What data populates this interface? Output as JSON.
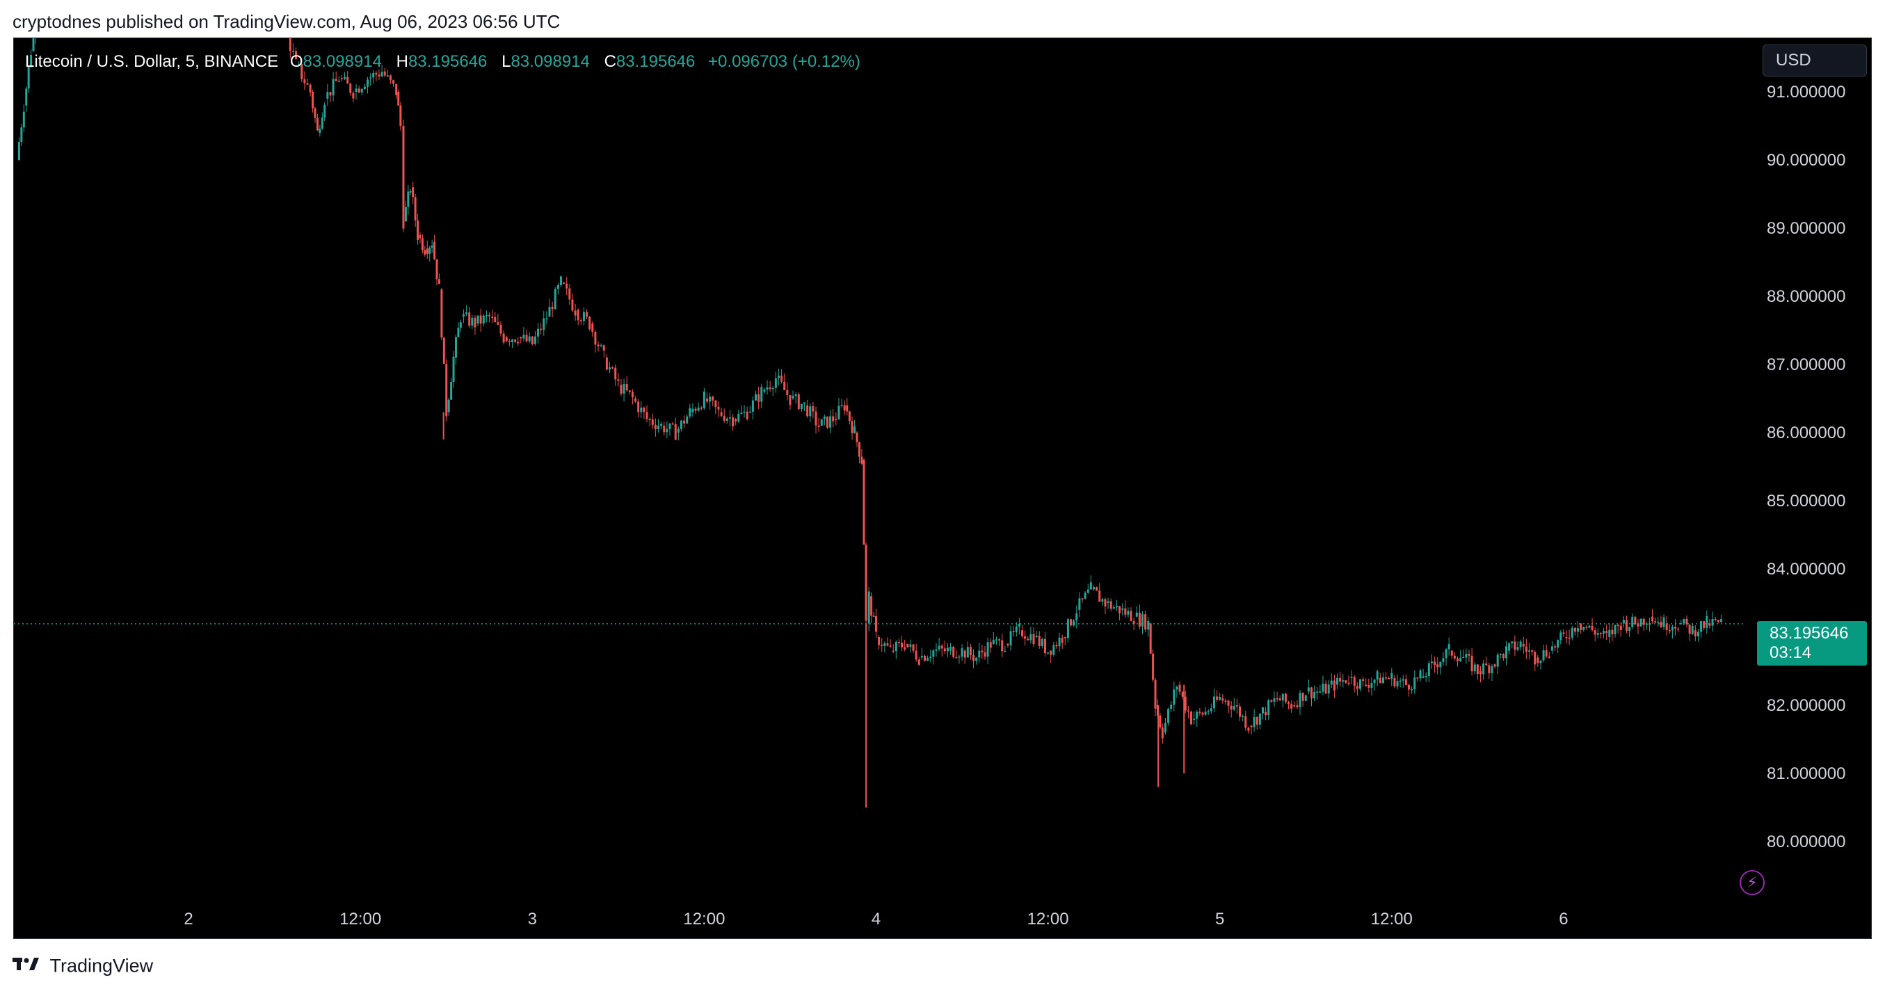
{
  "header": {
    "published_text": "cryptodnes published on TradingView.com, Aug 06, 2023 06:56 UTC"
  },
  "legend": {
    "symbol": "Litecoin / U.S. Dollar, 5, BINANCE",
    "open_label": "O",
    "open_value": "83.098914",
    "high_label": "H",
    "high_value": "83.195646",
    "low_label": "L",
    "low_value": "83.098914",
    "close_label": "C",
    "close_value": "83.195646",
    "change": "+0.096703 (+0.12%)"
  },
  "currency_button": "USD",
  "price_tag": {
    "price": "83.195646",
    "countdown": "03:14"
  },
  "bolt_icon": "lightning-bolt-icon",
  "brand": {
    "logo_icon": "tradingview-logo-icon",
    "name": "TradingView"
  },
  "colors": {
    "background": "#000000",
    "up": "#26a69a",
    "down": "#ef5350",
    "price_line": "#089981",
    "axis_text": "#d1d4dc",
    "accent_purple": "#9c27b0"
  },
  "chart_data": {
    "type": "line",
    "title": "Litecoin / U.S. Dollar, 5, BINANCE",
    "ylim": [
      79.2,
      92.4
    ],
    "yticks": [
      "80.000000",
      "81.000000",
      "82.000000",
      "83.000000",
      "84.000000",
      "85.000000",
      "86.000000",
      "87.000000",
      "88.000000",
      "89.000000",
      "90.000000",
      "91.000000"
    ],
    "xlim": [
      0,
      120
    ],
    "xtick_labels": [
      {
        "x": 12,
        "label": "2"
      },
      {
        "x": 24,
        "label": "12:00"
      },
      {
        "x": 36,
        "label": "3"
      },
      {
        "x": 48,
        "label": "12:00"
      },
      {
        "x": 60,
        "label": "4"
      },
      {
        "x": 72,
        "label": "12:00"
      },
      {
        "x": 84,
        "label": "5"
      },
      {
        "x": 96,
        "label": "12:00"
      },
      {
        "x": 108,
        "label": "6"
      }
    ],
    "current_price": 83.195646,
    "grid": false,
    "series": [
      {
        "values": [
          [
            0,
            90.0
          ],
          [
            0.5,
            90.8
          ],
          [
            1,
            91.6
          ],
          [
            1.5,
            92.2
          ],
          [
            2,
            92.4
          ],
          [
            3,
            92.7
          ],
          [
            5,
            92.6
          ],
          [
            8,
            92.5
          ],
          [
            11,
            92.6
          ],
          [
            14,
            92.6
          ],
          [
            16,
            92.5
          ],
          [
            17.5,
            92.4
          ],
          [
            18.5,
            92.1
          ],
          [
            19.5,
            91.4
          ],
          [
            20.5,
            91.0
          ],
          [
            21,
            90.4
          ],
          [
            21.5,
            90.9
          ],
          [
            22.5,
            91.2
          ],
          [
            23.5,
            91.0
          ],
          [
            24.5,
            91.2
          ],
          [
            25.5,
            91.3
          ],
          [
            26.5,
            91.0
          ],
          [
            26.8,
            90.5
          ],
          [
            27,
            89.1
          ],
          [
            27.5,
            89.6
          ],
          [
            28,
            88.9
          ],
          [
            28.5,
            88.7
          ],
          [
            29,
            88.8
          ],
          [
            29.5,
            88.1
          ],
          [
            30,
            86.3
          ],
          [
            30.5,
            87.1
          ],
          [
            31,
            87.7
          ],
          [
            32,
            87.6
          ],
          [
            33,
            87.7
          ],
          [
            34,
            87.4
          ],
          [
            35,
            87.4
          ],
          [
            36,
            87.3
          ],
          [
            37,
            87.7
          ],
          [
            38,
            88.2
          ],
          [
            39,
            87.8
          ],
          [
            40,
            87.6
          ],
          [
            41,
            87.1
          ],
          [
            42,
            86.7
          ],
          [
            43,
            86.5
          ],
          [
            44,
            86.2
          ],
          [
            45,
            86.1
          ],
          [
            46,
            86.0
          ],
          [
            47,
            86.3
          ],
          [
            48,
            86.5
          ],
          [
            49,
            86.3
          ],
          [
            50,
            86.2
          ],
          [
            51,
            86.3
          ],
          [
            52,
            86.6
          ],
          [
            53,
            86.8
          ],
          [
            54,
            86.5
          ],
          [
            55,
            86.4
          ],
          [
            56,
            86.1
          ],
          [
            57,
            86.2
          ],
          [
            57.8,
            86.4
          ],
          [
            58.5,
            86.0
          ],
          [
            59,
            85.6
          ],
          [
            59.3,
            83.2
          ],
          [
            59.5,
            83.6
          ],
          [
            60,
            83.0
          ],
          [
            61,
            82.8
          ],
          [
            62,
            82.9
          ],
          [
            63,
            82.7
          ],
          [
            64,
            82.8
          ],
          [
            65,
            82.8
          ],
          [
            66,
            82.8
          ],
          [
            67,
            82.7
          ],
          [
            68,
            82.9
          ],
          [
            69,
            82.9
          ],
          [
            70,
            83.1
          ],
          [
            71,
            83.0
          ],
          [
            72,
            82.8
          ],
          [
            73,
            83.0
          ],
          [
            74,
            83.4
          ],
          [
            75,
            83.7
          ],
          [
            76,
            83.5
          ],
          [
            77,
            83.4
          ],
          [
            78,
            83.3
          ],
          [
            79,
            83.2
          ],
          [
            79.5,
            82.0
          ],
          [
            80,
            81.6
          ],
          [
            81,
            82.3
          ],
          [
            82,
            81.8
          ],
          [
            83,
            81.9
          ],
          [
            84,
            82.1
          ],
          [
            85,
            82.0
          ],
          [
            86,
            81.7
          ],
          [
            87,
            81.9
          ],
          [
            88,
            82.1
          ],
          [
            89,
            82.0
          ],
          [
            90,
            82.2
          ],
          [
            91,
            82.2
          ],
          [
            92,
            82.3
          ],
          [
            93,
            82.4
          ],
          [
            94,
            82.3
          ],
          [
            95,
            82.4
          ],
          [
            96,
            82.4
          ],
          [
            97,
            82.3
          ],
          [
            98,
            82.4
          ],
          [
            99,
            82.6
          ],
          [
            100,
            82.8
          ],
          [
            101,
            82.7
          ],
          [
            102,
            82.5
          ],
          [
            103,
            82.6
          ],
          [
            104,
            82.8
          ],
          [
            105,
            82.9
          ],
          [
            106,
            82.7
          ],
          [
            107,
            82.8
          ],
          [
            108,
            83.0
          ],
          [
            109,
            83.2
          ],
          [
            110,
            83.1
          ],
          [
            111,
            83.0
          ],
          [
            112,
            83.2
          ],
          [
            113,
            83.2
          ],
          [
            114,
            83.3
          ],
          [
            115,
            83.2
          ],
          [
            116,
            83.2
          ],
          [
            117,
            83.1
          ],
          [
            118,
            83.2
          ],
          [
            119,
            83.2
          ]
        ]
      }
    ],
    "spikes": [
      {
        "x": 29.8,
        "low": 85.9
      },
      {
        "x": 59.3,
        "low": 80.5
      },
      {
        "x": 79.7,
        "low": 80.8
      },
      {
        "x": 81.5,
        "low": 81.0
      }
    ]
  }
}
